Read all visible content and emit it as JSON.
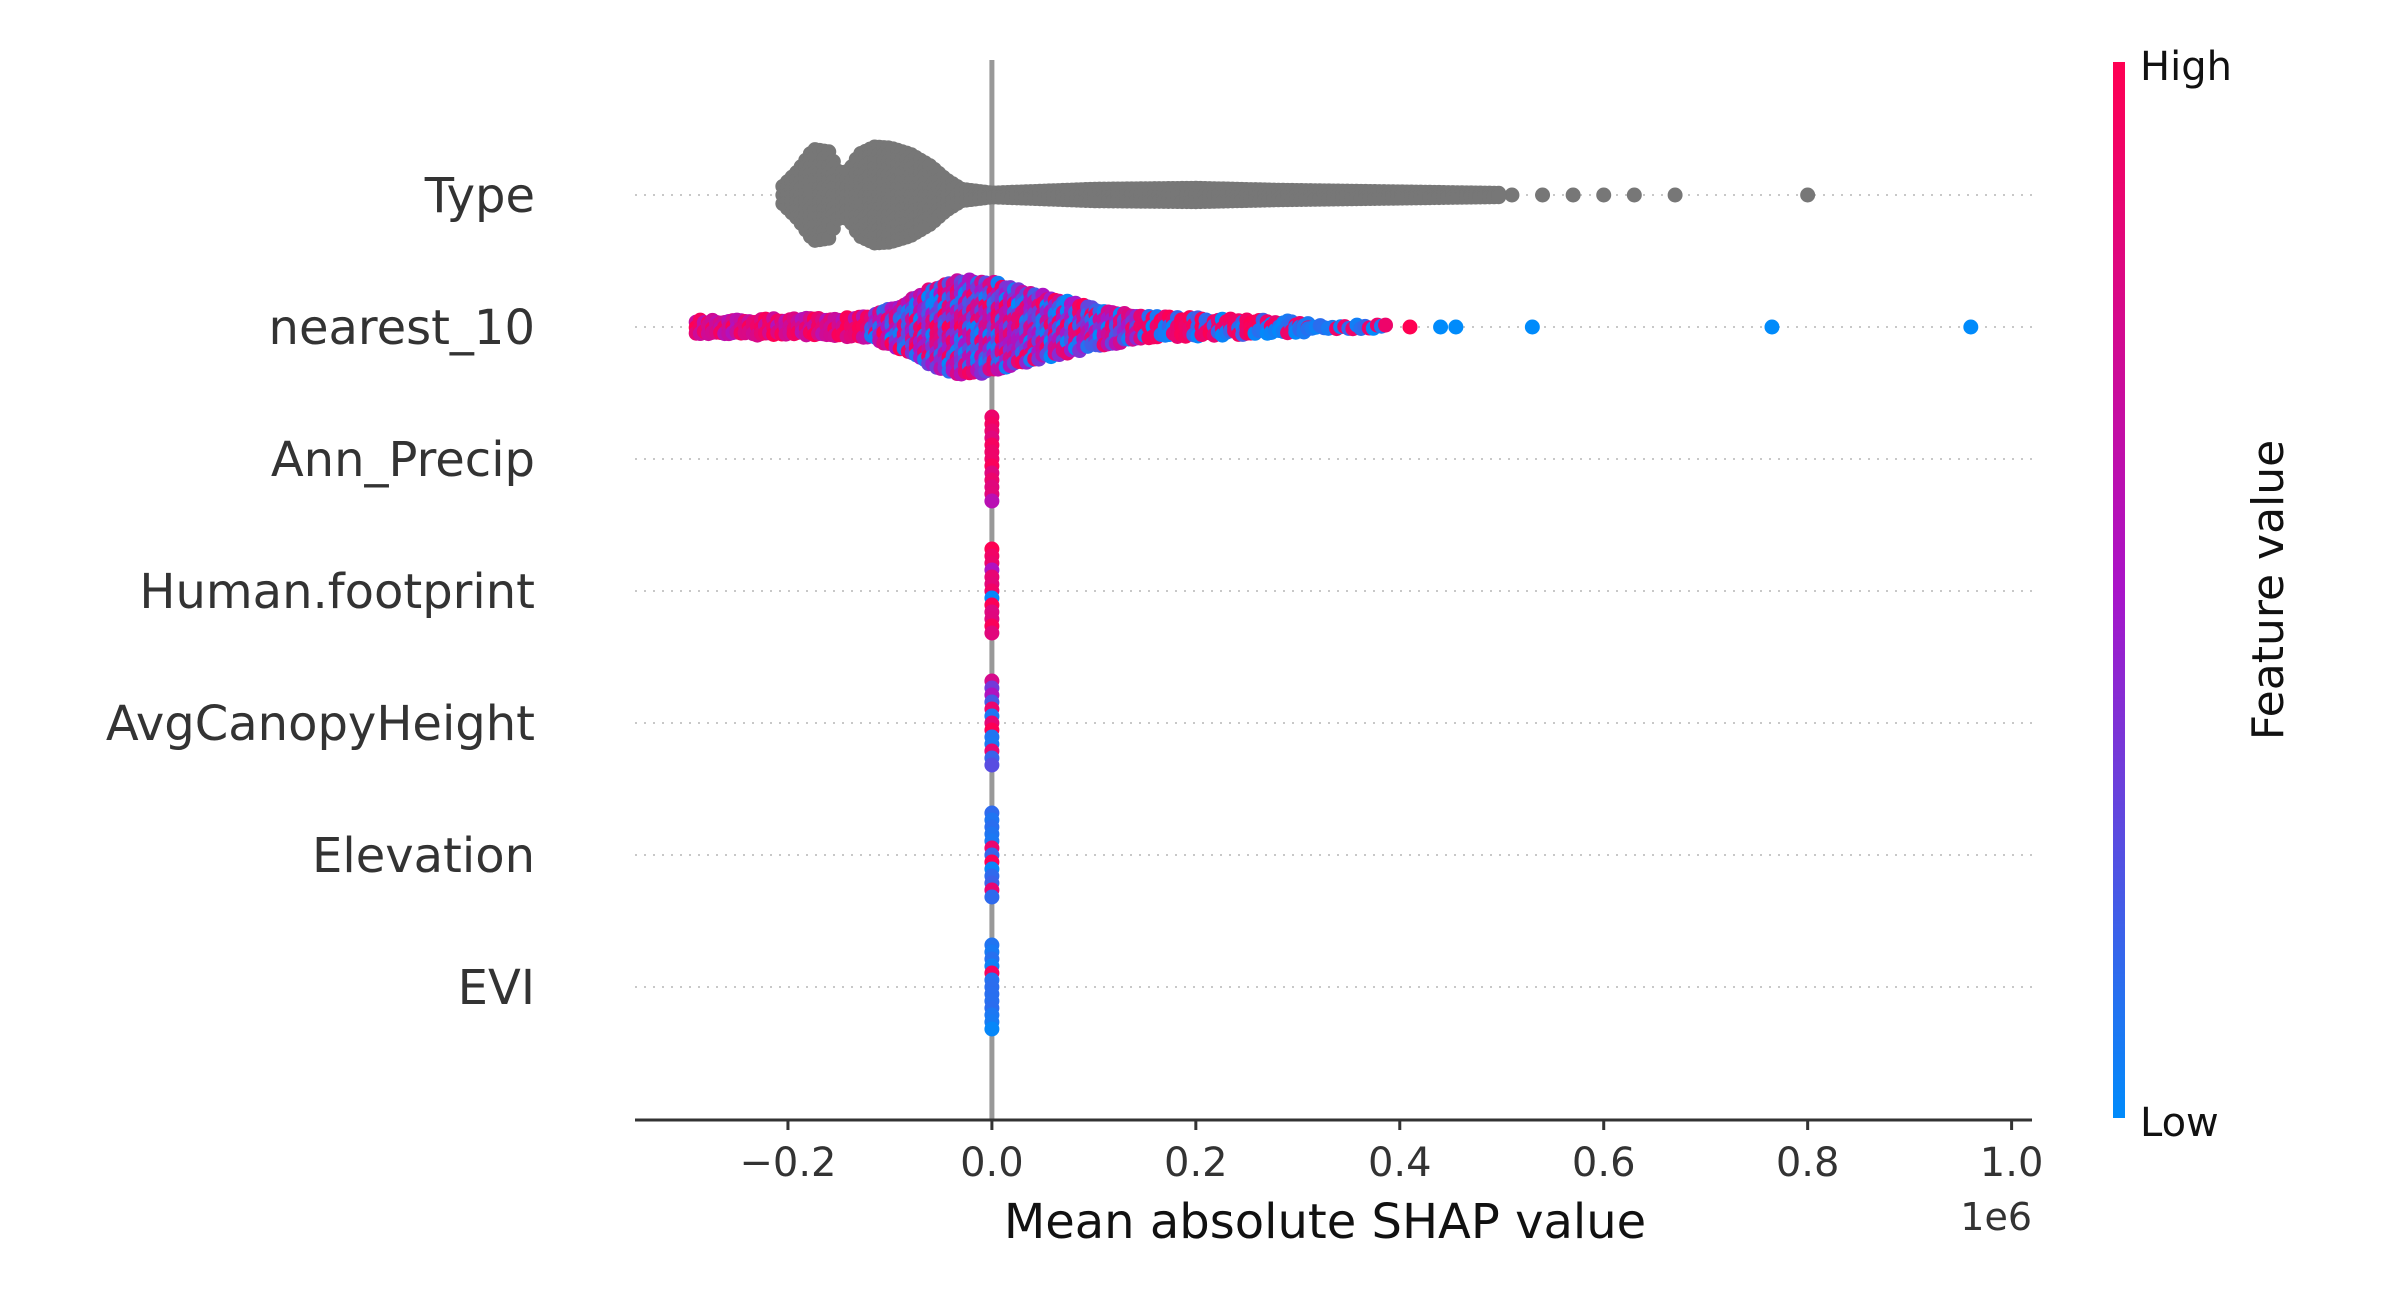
{
  "chart_data": {
    "type": "scatter",
    "subtype": "beeswarm",
    "xlabel": "Mean absolute SHAP value",
    "x_offset_label": "1e6",
    "xlim": [
      -0.35,
      1.02
    ],
    "xticks": [
      -0.2,
      0.0,
      0.2,
      0.4,
      0.6,
      0.8,
      1.0
    ],
    "xtick_labels": [
      "−0.2",
      "0.0",
      "0.2",
      "0.4",
      "0.6",
      "0.8",
      "1.0"
    ],
    "features": [
      "Type",
      "nearest_10",
      "Ann_Precip",
      "Human.footprint",
      "AvgCanopyHeight",
      "Elevation",
      "EVI"
    ],
    "grid": "dotted horizontal per feature",
    "colorbar": {
      "title": "Feature value",
      "high_label": "High",
      "low_label": "Low",
      "high_color": "#ff0052",
      "low_color": "#008bfb"
    },
    "no_value_color": "#777777",
    "series": [
      {
        "feature": "Type",
        "has_feature_value": false,
        "x_samples": [
          -0.2,
          -0.19,
          -0.18,
          -0.17,
          -0.16,
          -0.15,
          -0.14,
          -0.13,
          -0.12,
          -0.11,
          -0.1,
          -0.09,
          -0.08,
          -0.07,
          -0.06,
          -0.05,
          -0.04,
          -0.02,
          0.0,
          0.03,
          0.05,
          0.07,
          0.09,
          0.11,
          0.13,
          0.15,
          0.17,
          0.19,
          0.21,
          0.23,
          0.25,
          0.27,
          0.29,
          0.31,
          0.33,
          0.35,
          0.37,
          0.39,
          0.41,
          0.43,
          0.45,
          0.47,
          0.49,
          0.51,
          0.54,
          0.57,
          0.6,
          0.63,
          0.67,
          0.8
        ],
        "density_profile": [
          [
            -0.205,
            0.18
          ],
          [
            -0.19,
            0.5
          ],
          [
            -0.175,
            0.95
          ],
          [
            -0.16,
            0.9
          ],
          [
            -0.15,
            0.45
          ],
          [
            -0.14,
            0.5
          ],
          [
            -0.13,
            0.85
          ],
          [
            -0.115,
            1.0
          ],
          [
            -0.1,
            0.98
          ],
          [
            -0.08,
            0.85
          ],
          [
            -0.06,
            0.6
          ],
          [
            -0.045,
            0.32
          ],
          [
            -0.03,
            0.12
          ],
          [
            0.0,
            0.04
          ],
          [
            0.1,
            0.12
          ],
          [
            0.2,
            0.14
          ],
          [
            0.28,
            0.1
          ],
          [
            0.35,
            0.08
          ],
          [
            0.45,
            0.05
          ],
          [
            0.55,
            0.02
          ]
        ]
      },
      {
        "feature": "nearest_10",
        "has_feature_value": true,
        "x_range": [
          -0.29,
          0.96
        ],
        "outliers": [
          {
            "x": 0.41,
            "feature_value": 1.0
          },
          {
            "x": 0.44,
            "feature_value": 0.0
          },
          {
            "x": 0.455,
            "feature_value": 0.0
          },
          {
            "x": 0.53,
            "feature_value": 0.0
          },
          {
            "x": 0.765,
            "feature_value": 0.0
          },
          {
            "x": 0.96,
            "feature_value": 0.0
          }
        ],
        "density_profile": [
          [
            -0.29,
            0.12
          ],
          [
            -0.2,
            0.14
          ],
          [
            -0.12,
            0.2
          ],
          [
            -0.08,
            0.55
          ],
          [
            -0.06,
            0.8
          ],
          [
            -0.03,
            1.0
          ],
          [
            0.0,
            0.95
          ],
          [
            0.03,
            0.75
          ],
          [
            0.06,
            0.6
          ],
          [
            0.1,
            0.4
          ],
          [
            0.15,
            0.2
          ],
          [
            0.22,
            0.14
          ],
          [
            0.3,
            0.08
          ],
          [
            0.38,
            0.05
          ]
        ]
      },
      {
        "feature": "Ann_Precip",
        "has_feature_value": true,
        "x_range": [
          -0.003,
          0.003
        ],
        "value_mix": "mostly high"
      },
      {
        "feature": "Human.footprint",
        "has_feature_value": true,
        "x_range": [
          -0.003,
          0.003
        ],
        "value_mix": "mostly high"
      },
      {
        "feature": "AvgCanopyHeight",
        "has_feature_value": true,
        "x_range": [
          -0.003,
          0.003
        ],
        "value_mix": "mixed"
      },
      {
        "feature": "Elevation",
        "has_feature_value": true,
        "x_range": [
          -0.003,
          0.003
        ],
        "value_mix": "mostly low"
      },
      {
        "feature": "EVI",
        "has_feature_value": true,
        "x_range": [
          -0.003,
          0.003
        ],
        "value_mix": "mostly low"
      }
    ]
  }
}
